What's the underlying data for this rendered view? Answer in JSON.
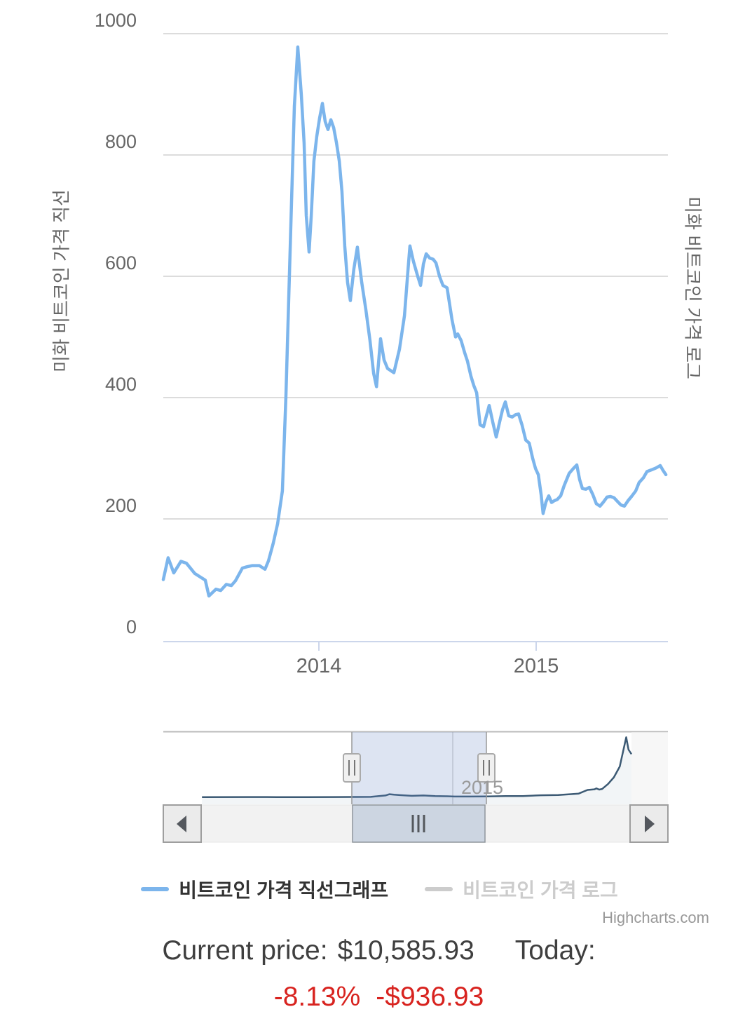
{
  "main_chart": {
    "y_axis": {
      "title": "미화 비트코인 가격 직선",
      "ticks": [
        "1000",
        "800",
        "600",
        "400",
        "200",
        "0"
      ]
    },
    "y_axis_right": {
      "title": "미화 비트코인 가격 로그"
    },
    "x_axis": {
      "ticks": [
        "2014",
        "2015"
      ]
    }
  },
  "navigator": {
    "year_label": "2015"
  },
  "legend": [
    {
      "label": "비트코인 가격 직선그래프",
      "color": "#7cb5ec",
      "enabled": true
    },
    {
      "label": "비트코인 가격 로그",
      "color": "#cccccc",
      "enabled": false
    }
  ],
  "credits": "Highcharts.com",
  "footer": {
    "current_price_label": "Current price:",
    "current_price_value": "$10,585.93",
    "today_label": "Today:",
    "change_percent": "-8.13%",
    "change_amount": "-$936.93",
    "change_color": "#d8231f"
  },
  "chart_data": {
    "type": "line",
    "title": "",
    "y_axis": {
      "range": [
        0,
        1000
      ],
      "tick_interval": 200,
      "grid": true
    },
    "x_axis": {
      "visible_range": [
        2013.28,
        2015.6
      ],
      "ticks": [
        2014,
        2015
      ],
      "unit": "decimal_year"
    },
    "legend_position": "bottom",
    "series": [
      {
        "name": "비트코인 가격 직선그래프",
        "color": "#7cb5ec",
        "axis": "linear",
        "visible": true,
        "x_unit": "decimal_year",
        "points": [
          [
            2013.284,
            100
          ],
          [
            2013.306,
            136
          ],
          [
            2013.332,
            111
          ],
          [
            2013.365,
            130
          ],
          [
            2013.39,
            127
          ],
          [
            2013.429,
            110
          ],
          [
            2013.455,
            104
          ],
          [
            2013.477,
            99
          ],
          [
            2013.494,
            73
          ],
          [
            2013.526,
            84
          ],
          [
            2013.548,
            82
          ],
          [
            2013.574,
            92
          ],
          [
            2013.597,
            90
          ],
          [
            2013.616,
            98
          ],
          [
            2013.648,
            119
          ],
          [
            2013.668,
            121
          ],
          [
            2013.694,
            123
          ],
          [
            2013.726,
            123
          ],
          [
            2013.752,
            117
          ],
          [
            2013.768,
            131
          ],
          [
            2013.79,
            160
          ],
          [
            2013.81,
            192
          ],
          [
            2013.832,
            246
          ],
          [
            2013.848,
            400
          ],
          [
            2013.861,
            560
          ],
          [
            2013.874,
            720
          ],
          [
            2013.887,
            880
          ],
          [
            2013.903,
            978
          ],
          [
            2013.919,
            900
          ],
          [
            2013.932,
            820
          ],
          [
            2013.942,
            700
          ],
          [
            2013.955,
            640
          ],
          [
            2013.965,
            700
          ],
          [
            2013.977,
            790
          ],
          [
            2013.99,
            830
          ],
          [
            2014.003,
            860
          ],
          [
            2014.016,
            885
          ],
          [
            2014.029,
            855
          ],
          [
            2014.042,
            842
          ],
          [
            2014.055,
            858
          ],
          [
            2014.068,
            845
          ],
          [
            2014.081,
            820
          ],
          [
            2014.094,
            790
          ],
          [
            2014.106,
            740
          ],
          [
            2014.119,
            650
          ],
          [
            2014.132,
            590
          ],
          [
            2014.145,
            560
          ],
          [
            2014.161,
            612
          ],
          [
            2014.177,
            648
          ],
          [
            2014.197,
            590
          ],
          [
            2014.216,
            545
          ],
          [
            2014.235,
            495
          ],
          [
            2014.252,
            440
          ],
          [
            2014.265,
            418
          ],
          [
            2014.284,
            497
          ],
          [
            2014.3,
            462
          ],
          [
            2014.316,
            448
          ],
          [
            2014.345,
            441
          ],
          [
            2014.371,
            480
          ],
          [
            2014.394,
            535
          ],
          [
            2014.41,
            610
          ],
          [
            2014.419,
            650
          ],
          [
            2014.435,
            625
          ],
          [
            2014.455,
            600
          ],
          [
            2014.468,
            585
          ],
          [
            2014.481,
            620
          ],
          [
            2014.494,
            637
          ],
          [
            2014.51,
            630
          ],
          [
            2014.526,
            628
          ],
          [
            2014.539,
            622
          ],
          [
            2014.555,
            600
          ],
          [
            2014.571,
            585
          ],
          [
            2014.59,
            581
          ],
          [
            2014.613,
            528
          ],
          [
            2014.629,
            500
          ],
          [
            2014.639,
            505
          ],
          [
            2014.655,
            494
          ],
          [
            2014.671,
            474
          ],
          [
            2014.684,
            460
          ],
          [
            2014.7,
            435
          ],
          [
            2014.713,
            420
          ],
          [
            2014.726,
            408
          ],
          [
            2014.742,
            355
          ],
          [
            2014.758,
            352
          ],
          [
            2014.771,
            370
          ],
          [
            2014.784,
            387
          ],
          [
            2014.8,
            360
          ],
          [
            2014.816,
            335
          ],
          [
            2014.832,
            360
          ],
          [
            2014.845,
            380
          ],
          [
            2014.858,
            393
          ],
          [
            2014.874,
            370
          ],
          [
            2014.89,
            368
          ],
          [
            2014.906,
            372
          ],
          [
            2014.919,
            373
          ],
          [
            2014.935,
            355
          ],
          [
            2014.952,
            330
          ],
          [
            2014.968,
            325
          ],
          [
            2014.984,
            300
          ],
          [
            2014.997,
            283
          ],
          [
            2015.01,
            273
          ],
          [
            2015.023,
            240
          ],
          [
            2015.032,
            209
          ],
          [
            2015.045,
            228
          ],
          [
            2015.058,
            238
          ],
          [
            2015.071,
            227
          ],
          [
            2015.084,
            230
          ],
          [
            2015.097,
            232
          ],
          [
            2015.113,
            238
          ],
          [
            2015.129,
            255
          ],
          [
            2015.152,
            275
          ],
          [
            2015.171,
            283
          ],
          [
            2015.187,
            289
          ],
          [
            2015.2,
            265
          ],
          [
            2015.213,
            250
          ],
          [
            2015.229,
            249
          ],
          [
            2015.245,
            252
          ],
          [
            2015.261,
            240
          ],
          [
            2015.277,
            225
          ],
          [
            2015.294,
            221
          ],
          [
            2015.31,
            228
          ],
          [
            2015.326,
            236
          ],
          [
            2015.342,
            237
          ],
          [
            2015.358,
            235
          ],
          [
            2015.374,
            229
          ],
          [
            2015.39,
            223
          ],
          [
            2015.406,
            221
          ],
          [
            2015.423,
            230
          ],
          [
            2015.439,
            237
          ],
          [
            2015.458,
            246
          ],
          [
            2015.474,
            260
          ],
          [
            2015.494,
            268
          ],
          [
            2015.51,
            278
          ],
          [
            2015.532,
            281
          ],
          [
            2015.552,
            284
          ],
          [
            2015.571,
            288
          ],
          [
            2015.584,
            280
          ],
          [
            2015.597,
            273
          ]
        ]
      },
      {
        "name": "비트코인 가격 로그",
        "color": "#cccccc",
        "axis": "log",
        "visible": false,
        "points": []
      }
    ],
    "navigator": {
      "full_range": [
        2010.1,
        2018.7
      ],
      "selected_range": [
        2013.28,
        2015.6
      ],
      "tick_label": 2015,
      "series_points": [
        [
          2010.72,
          60
        ],
        [
          2011.5,
          80
        ],
        [
          2012.0,
          60
        ],
        [
          2012.5,
          70
        ],
        [
          2013.0,
          100
        ],
        [
          2013.3,
          120
        ],
        [
          2013.6,
          130
        ],
        [
          2013.85,
          600
        ],
        [
          2013.92,
          1000
        ],
        [
          2014.0,
          850
        ],
        [
          2014.1,
          700
        ],
        [
          2014.3,
          480
        ],
        [
          2014.5,
          600
        ],
        [
          2014.7,
          400
        ],
        [
          2014.9,
          350
        ],
        [
          2015.03,
          260
        ],
        [
          2015.3,
          240
        ],
        [
          2015.6,
          270
        ],
        [
          2015.9,
          380
        ],
        [
          2016.2,
          420
        ],
        [
          2016.5,
          670
        ],
        [
          2016.8,
          730
        ],
        [
          2017.0,
          1000
        ],
        [
          2017.15,
          1200
        ],
        [
          2017.3,
          2400
        ],
        [
          2017.42,
          2600
        ],
        [
          2017.45,
          2900
        ],
        [
          2017.5,
          2500
        ],
        [
          2017.55,
          2700
        ],
        [
          2017.65,
          4300
        ],
        [
          2017.75,
          6500
        ],
        [
          2017.85,
          10000
        ],
        [
          2017.92,
          16000
        ],
        [
          2017.96,
          19500
        ],
        [
          2018.0,
          15500
        ],
        [
          2018.05,
          14000
        ]
      ]
    }
  }
}
